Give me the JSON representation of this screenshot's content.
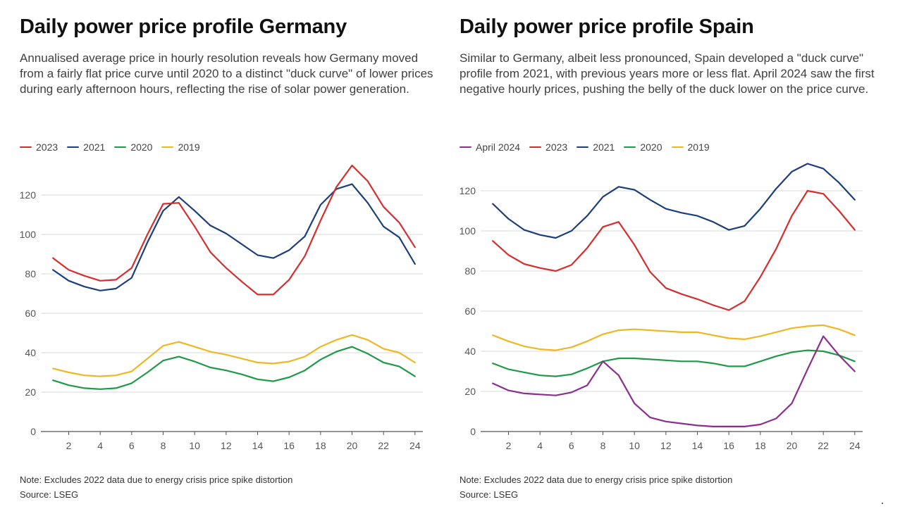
{
  "panels": [
    {
      "title": "Daily power price profile Germany",
      "subtitle": "Annualised average price in hourly resolution reveals how Germany moved from a fairly flat price curve until 2020 to a distinct \"duck curve\" of lower prices during early afternoon hours, reflecting the rise of solar power generation.",
      "note": "Note: Excludes 2022 data due to energy crisis price spike distortion",
      "source": "Source: LSEG"
    },
    {
      "title": "Daily power price profile Spain",
      "subtitle": "Similar to Germany, albeit less pronounced, Spain developed a \"duck curve\" profile from 2021, with previous years more or less flat. April 2024 saw the first negative hourly prices, pushing the belly of the duck lower on the price curve.",
      "note": "Note: Excludes 2022 data due to energy crisis price spike distortion",
      "source": "Source: LSEG"
    }
  ],
  "chart_data": [
    {
      "type": "line",
      "title": "Daily power price profile Germany",
      "xlabel": "",
      "ylabel": "",
      "x": [
        1,
        2,
        3,
        4,
        5,
        6,
        7,
        8,
        9,
        10,
        11,
        12,
        13,
        14,
        15,
        16,
        17,
        18,
        19,
        20,
        21,
        22,
        23,
        24
      ],
      "x_ticks": [
        2,
        4,
        6,
        8,
        10,
        12,
        14,
        16,
        18,
        20,
        22,
        24
      ],
      "y_ticks": [
        0,
        20,
        40,
        60,
        80,
        100,
        120
      ],
      "xlim": [
        0.5,
        24.5
      ],
      "ylim": [
        0,
        140
      ],
      "grid": "horizontal",
      "legend_position": "top-left",
      "series": [
        {
          "name": "2023",
          "color": "#d62e2e",
          "values": [
            88,
            82,
            79,
            76.5,
            77,
            83,
            100,
            115.5,
            116,
            104,
            91,
            83,
            76,
            69.5,
            69.5,
            77,
            89,
            107,
            124,
            135,
            127,
            114,
            106,
            93.5
          ]
        },
        {
          "name": "2021",
          "color": "#1c3f7c",
          "values": [
            82,
            76.5,
            73.5,
            71.5,
            72.5,
            78,
            96,
            112,
            119,
            112,
            104.5,
            100.5,
            95,
            89.5,
            88,
            92,
            99,
            115,
            123,
            125.5,
            116,
            104,
            98.5,
            85
          ]
        },
        {
          "name": "2020",
          "color": "#1f9a48",
          "values": [
            26,
            23.5,
            22,
            21.5,
            22,
            24.5,
            30,
            36,
            38,
            35.5,
            32.5,
            31,
            29,
            26.5,
            25.5,
            27.5,
            31,
            36.5,
            40.5,
            43,
            39.5,
            35,
            33,
            28
          ]
        },
        {
          "name": "2019",
          "color": "#efb722",
          "values": [
            32,
            30,
            28.5,
            28,
            28.5,
            30.5,
            37,
            43.5,
            45.5,
            43,
            40.5,
            39,
            37,
            35,
            34.5,
            35.5,
            38,
            43,
            46.5,
            49,
            46.5,
            42,
            40,
            35
          ]
        }
      ]
    },
    {
      "type": "line",
      "title": "Daily power price profile Spain",
      "xlabel": "",
      "ylabel": "",
      "x": [
        1,
        2,
        3,
        4,
        5,
        6,
        7,
        8,
        9,
        10,
        11,
        12,
        13,
        14,
        15,
        16,
        17,
        18,
        19,
        20,
        21,
        22,
        23,
        24
      ],
      "x_ticks": [
        2,
        4,
        6,
        8,
        10,
        12,
        14,
        16,
        18,
        20,
        22,
        24
      ],
      "y_ticks": [
        0,
        20,
        40,
        60,
        80,
        100,
        120
      ],
      "xlim": [
        0.5,
        24.5
      ],
      "ylim": [
        0,
        135
      ],
      "grid": "horizontal",
      "legend_position": "top-left",
      "series": [
        {
          "name": "April 2024",
          "color": "#8b2f8f",
          "values": [
            24,
            20.5,
            19,
            18.5,
            18,
            19.5,
            23,
            35,
            28,
            14,
            7,
            5,
            4,
            3,
            2.5,
            2.5,
            2.5,
            3.5,
            6.5,
            14,
            31,
            47.5,
            38,
            30
          ]
        },
        {
          "name": "2023",
          "color": "#d62e2e",
          "values": [
            95,
            88,
            83.5,
            81.5,
            80,
            83,
            91.5,
            102,
            104.5,
            93,
            79.5,
            71.5,
            68.5,
            66,
            63,
            60.5,
            65,
            77,
            91,
            107.5,
            120,
            118.5,
            110,
            100.5
          ]
        },
        {
          "name": "2021",
          "color": "#1c3f7c",
          "values": [
            113.5,
            106,
            100.5,
            98,
            96.5,
            100,
            107.5,
            117,
            122,
            120.5,
            115.5,
            111,
            109,
            107.5,
            104.5,
            100.5,
            102.5,
            111,
            121,
            129.5,
            133.5,
            131,
            124,
            115.5
          ]
        },
        {
          "name": "2020",
          "color": "#1f9a48",
          "values": [
            34,
            31,
            29.5,
            28,
            27.5,
            28.5,
            31.5,
            35,
            36.5,
            36.5,
            36,
            35.5,
            35,
            35,
            34,
            32.5,
            32.5,
            35,
            37.5,
            39.5,
            40.5,
            40,
            38,
            35
          ]
        },
        {
          "name": "2019",
          "color": "#efb722",
          "values": [
            48,
            45,
            42.5,
            41,
            40.5,
            42,
            45,
            48.5,
            50.5,
            51,
            50.5,
            50,
            49.5,
            49.5,
            48,
            46.5,
            46,
            47.5,
            49.5,
            51.5,
            52.5,
            53,
            51,
            48
          ]
        }
      ]
    }
  ]
}
